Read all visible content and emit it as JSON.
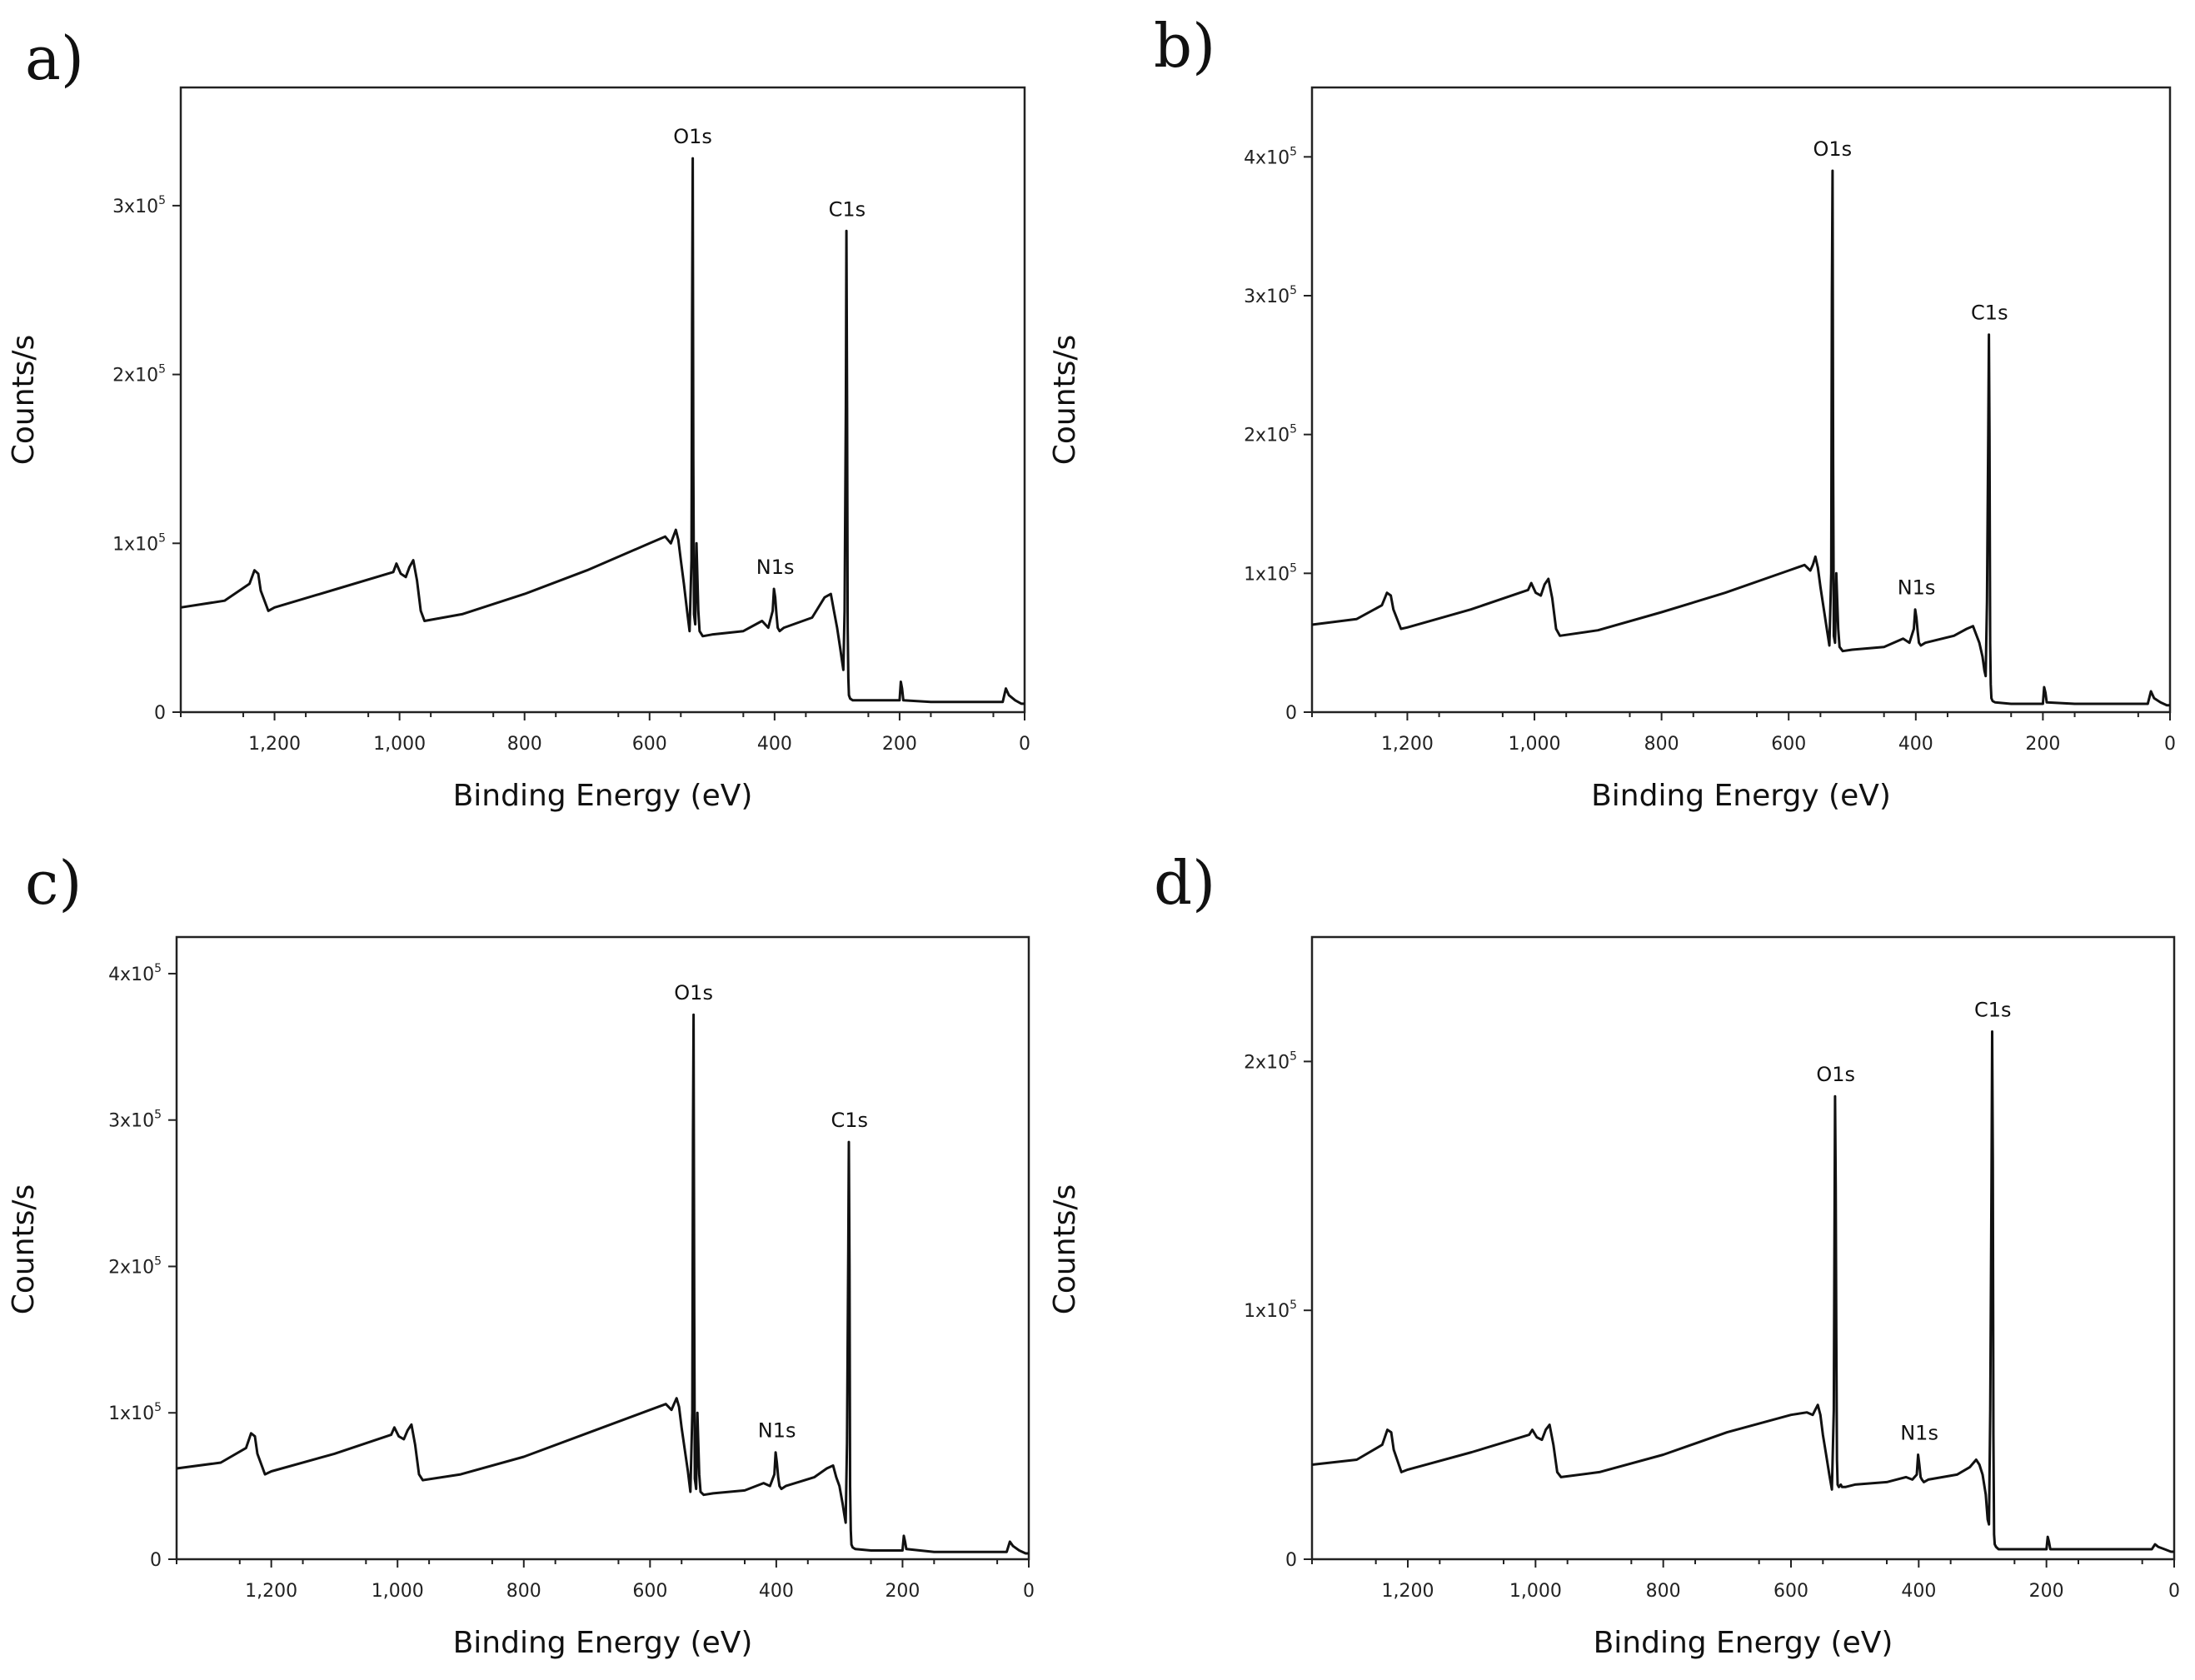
{
  "chart_data": [
    {
      "type": "line",
      "panel": "a)",
      "xlabel": "Binding Energy (eV)",
      "ylabel": "Counts/s",
      "xlim": [
        1350,
        0
      ],
      "ylim": [
        0,
        370000
      ],
      "xticks": [
        {
          "v": 1200,
          "t": "1,200"
        },
        {
          "v": 1000,
          "t": "1,000"
        },
        {
          "v": 800,
          "t": "800"
        },
        {
          "v": 600,
          "t": "600"
        },
        {
          "v": 400,
          "t": "400"
        },
        {
          "v": 200,
          "t": "200"
        },
        {
          "v": 0,
          "t": "0"
        }
      ],
      "yticks": [
        {
          "v": 0,
          "m": "0",
          "e": ""
        },
        {
          "v": 100000,
          "m": "1x10",
          "e": "5"
        },
        {
          "v": 200000,
          "m": "2x10",
          "e": "5"
        },
        {
          "v": 300000,
          "m": "3x10",
          "e": "5"
        }
      ],
      "peaks": [
        {
          "label": "O1s",
          "x": 531,
          "y": 328000
        },
        {
          "label": "C1s",
          "x": 284,
          "y": 285000
        },
        {
          "label": "N1s",
          "x": 399,
          "y": 73000
        }
      ],
      "series": [
        {
          "name": "spectrum",
          "x": [
            1350,
            1280,
            1240,
            1232,
            1226,
            1222,
            1210,
            1200,
            1100,
            1010,
            1005,
            998,
            990,
            984,
            978,
            972,
            966,
            960,
            900,
            800,
            700,
            600,
            575,
            566,
            562,
            558,
            554,
            550,
            545,
            540,
            536,
            533,
            532,
            531,
            530,
            529,
            527,
            525,
            522,
            520,
            515,
            500,
            450,
            420,
            410,
            403,
            401,
            399,
            397,
            395,
            392,
            385,
            340,
            320,
            310,
            305,
            300,
            295,
            292,
            290,
            288,
            286,
            285,
            284,
            283,
            282,
            281,
            279,
            275,
            250,
            200,
            198,
            196,
            194,
            150,
            100,
            35,
            30,
            25,
            15,
            5,
            0
          ],
          "y": [
            62000,
            66000,
            76000,
            84000,
            82000,
            72000,
            60000,
            62000,
            73000,
            83000,
            88000,
            82000,
            80000,
            86000,
            90000,
            78000,
            60000,
            54000,
            58000,
            70000,
            84000,
            100000,
            104000,
            100000,
            104000,
            108000,
            102000,
            90000,
            76000,
            60000,
            48000,
            90000,
            230000,
            328000,
            150000,
            58000,
            52000,
            100000,
            60000,
            48000,
            45000,
            46000,
            48000,
            54000,
            50000,
            60000,
            73000,
            68000,
            58000,
            50000,
            48000,
            50000,
            56000,
            68000,
            70000,
            60000,
            50000,
            38000,
            30000,
            25000,
            60000,
            180000,
            285000,
            180000,
            50000,
            20000,
            10000,
            8000,
            7000,
            7000,
            7000,
            18000,
            14000,
            7000,
            6000,
            6000,
            6000,
            14000,
            10000,
            7000,
            5000,
            5000
          ]
        }
      ]
    },
    {
      "type": "line",
      "panel": "b)",
      "xlabel": "Binding Energy (eV)",
      "ylabel": "Counts/s",
      "xlim": [
        1350,
        0
      ],
      "ylim": [
        0,
        450000
      ],
      "xticks": [
        {
          "v": 1200,
          "t": "1,200"
        },
        {
          "v": 1000,
          "t": "1,000"
        },
        {
          "v": 800,
          "t": "800"
        },
        {
          "v": 600,
          "t": "600"
        },
        {
          "v": 400,
          "t": "400"
        },
        {
          "v": 200,
          "t": "200"
        },
        {
          "v": 0,
          "t": "0"
        }
      ],
      "yticks": [
        {
          "v": 0,
          "m": "0",
          "e": ""
        },
        {
          "v": 100000,
          "m": "1x10",
          "e": "5"
        },
        {
          "v": 200000,
          "m": "2x10",
          "e": "5"
        },
        {
          "v": 300000,
          "m": "3x10",
          "e": "5"
        },
        {
          "v": 400000,
          "m": "4x10",
          "e": "5"
        }
      ],
      "peaks": [
        {
          "label": "O1s",
          "x": 531,
          "y": 390000
        },
        {
          "label": "C1s",
          "x": 284,
          "y": 272000
        },
        {
          "label": "N1s",
          "x": 399,
          "y": 74000
        }
      ],
      "series": [
        {
          "name": "spectrum",
          "x": [
            1350,
            1280,
            1240,
            1232,
            1226,
            1222,
            1210,
            1200,
            1100,
            1010,
            1005,
            998,
            990,
            984,
            978,
            972,
            966,
            960,
            900,
            800,
            700,
            600,
            575,
            566,
            562,
            558,
            554,
            550,
            545,
            540,
            536,
            533,
            532,
            531,
            530,
            529,
            527,
            525,
            522,
            520,
            515,
            500,
            450,
            420,
            410,
            403,
            401,
            399,
            397,
            395,
            392,
            385,
            340,
            320,
            310,
            305,
            300,
            295,
            292,
            290,
            288,
            286,
            285,
            284,
            283,
            282,
            281,
            279,
            275,
            250,
            200,
            198,
            196,
            194,
            150,
            100,
            35,
            30,
            25,
            15,
            5,
            0
          ],
          "y": [
            63000,
            67000,
            77000,
            86000,
            84000,
            74000,
            60000,
            61000,
            74000,
            88000,
            93000,
            86000,
            84000,
            92000,
            96000,
            82000,
            60000,
            55000,
            59000,
            72000,
            86000,
            102000,
            106000,
            102000,
            106000,
            112000,
            104000,
            90000,
            75000,
            60000,
            48000,
            100000,
            300000,
            390000,
            180000,
            55000,
            50000,
            100000,
            60000,
            47000,
            44000,
            45000,
            47000,
            53000,
            50000,
            60000,
            74000,
            68000,
            58000,
            50000,
            48000,
            50000,
            55000,
            60000,
            62000,
            56000,
            50000,
            40000,
            30000,
            26000,
            80000,
            200000,
            272000,
            200000,
            50000,
            20000,
            10000,
            8000,
            7000,
            6000,
            6000,
            18000,
            14000,
            7000,
            6000,
            6000,
            6000,
            15000,
            10000,
            7000,
            5000,
            5000
          ]
        }
      ]
    },
    {
      "type": "line",
      "panel": "c)",
      "xlabel": "Binding Energy (eV)",
      "ylabel": "Counts/s",
      "xlim": [
        1350,
        0
      ],
      "ylim": [
        0,
        425000
      ],
      "xticks": [
        {
          "v": 1200,
          "t": "1,200"
        },
        {
          "v": 1000,
          "t": "1,000"
        },
        {
          "v": 800,
          "t": "800"
        },
        {
          "v": 600,
          "t": "600"
        },
        {
          "v": 400,
          "t": "400"
        },
        {
          "v": 200,
          "t": "200"
        },
        {
          "v": 0,
          "t": "0"
        }
      ],
      "yticks": [
        {
          "v": 0,
          "m": "0",
          "e": ""
        },
        {
          "v": 100000,
          "m": "1x10",
          "e": "5"
        },
        {
          "v": 200000,
          "m": "2x10",
          "e": "5"
        },
        {
          "v": 300000,
          "m": "3x10",
          "e": "5"
        },
        {
          "v": 400000,
          "m": "4x10",
          "e": "5"
        }
      ],
      "peaks": [
        {
          "label": "O1s",
          "x": 531,
          "y": 372000
        },
        {
          "label": "C1s",
          "x": 284,
          "y": 285000
        },
        {
          "label": "N1s",
          "x": 399,
          "y": 73000
        }
      ],
      "series": [
        {
          "name": "spectrum",
          "x": [
            1350,
            1280,
            1240,
            1232,
            1226,
            1222,
            1210,
            1200,
            1100,
            1010,
            1005,
            998,
            990,
            984,
            978,
            972,
            966,
            960,
            900,
            800,
            700,
            600,
            575,
            566,
            562,
            558,
            554,
            550,
            545,
            540,
            536,
            533,
            532,
            531,
            530,
            529,
            527,
            525,
            522,
            520,
            515,
            500,
            450,
            420,
            410,
            403,
            401,
            399,
            397,
            395,
            392,
            385,
            340,
            320,
            310,
            305,
            300,
            295,
            292,
            290,
            288,
            286,
            285,
            284,
            283,
            282,
            281,
            279,
            275,
            250,
            200,
            198,
            196,
            194,
            150,
            100,
            35,
            30,
            25,
            15,
            5,
            0
          ],
          "y": [
            62000,
            66000,
            76000,
            86000,
            84000,
            72000,
            58000,
            60000,
            72000,
            85000,
            90000,
            84000,
            82000,
            88000,
            92000,
            78000,
            58000,
            54000,
            58000,
            70000,
            86000,
            102000,
            106000,
            102000,
            106000,
            110000,
            104000,
            90000,
            75000,
            60000,
            46000,
            100000,
            290000,
            372000,
            170000,
            55000,
            48000,
            100000,
            58000,
            46000,
            44000,
            45000,
            47000,
            52000,
            50000,
            58000,
            73000,
            66000,
            56000,
            50000,
            48000,
            50000,
            56000,
            62000,
            64000,
            56000,
            50000,
            38000,
            30000,
            25000,
            80000,
            210000,
            285000,
            200000,
            50000,
            20000,
            10000,
            8000,
            7000,
            6000,
            6000,
            16000,
            12000,
            7000,
            5000,
            5000,
            5000,
            12000,
            9000,
            6000,
            4000,
            4000
          ]
        }
      ]
    },
    {
      "type": "line",
      "panel": "d)",
      "xlabel": "Binding Energy (eV)",
      "ylabel": "Counts/s",
      "xlim": [
        1350,
        0
      ],
      "ylim": [
        0,
        250000
      ],
      "xticks": [
        {
          "v": 1200,
          "t": "1,200"
        },
        {
          "v": 1000,
          "t": "1,000"
        },
        {
          "v": 800,
          "t": "800"
        },
        {
          "v": 600,
          "t": "600"
        },
        {
          "v": 400,
          "t": "400"
        },
        {
          "v": 200,
          "t": "200"
        },
        {
          "v": 0,
          "t": "0"
        }
      ],
      "yticks": [
        {
          "v": 0,
          "m": "0",
          "e": ""
        },
        {
          "v": 100000,
          "m": "1x10",
          "e": "5"
        },
        {
          "v": 200000,
          "m": "2x10",
          "e": "5"
        }
      ],
      "peaks": [
        {
          "label": "O1s",
          "x": 530,
          "y": 186000
        },
        {
          "label": "C1s",
          "x": 284,
          "y": 212000
        },
        {
          "label": "N1s",
          "x": 399,
          "y": 42000
        }
      ],
      "series": [
        {
          "name": "spectrum",
          "x": [
            1350,
            1280,
            1240,
            1232,
            1226,
            1222,
            1210,
            1200,
            1100,
            1010,
            1005,
            998,
            990,
            984,
            978,
            972,
            966,
            960,
            900,
            800,
            700,
            600,
            575,
            566,
            562,
            558,
            554,
            550,
            545,
            540,
            536,
            533,
            532,
            531,
            530,
            529,
            528,
            527,
            525,
            522,
            520,
            515,
            500,
            450,
            420,
            410,
            403,
            401,
            399,
            397,
            395,
            392,
            385,
            340,
            320,
            310,
            305,
            300,
            295,
            292,
            290,
            288,
            286,
            285,
            284,
            283,
            282,
            281,
            279,
            275,
            250,
            200,
            198,
            196,
            194,
            150,
            100,
            35,
            30,
            25,
            15,
            5,
            0
          ],
          "y": [
            38000,
            40000,
            46000,
            52000,
            51000,
            44000,
            35000,
            36000,
            43000,
            50000,
            52000,
            49000,
            48000,
            52000,
            54000,
            46000,
            35000,
            33000,
            35000,
            42000,
            51000,
            58000,
            59000,
            58000,
            60000,
            62000,
            58000,
            50000,
            42000,
            34000,
            28000,
            60000,
            120000,
            186000,
            150000,
            90000,
            40000,
            30000,
            29000,
            30000,
            29000,
            29000,
            30000,
            31000,
            33000,
            32000,
            34000,
            42000,
            38000,
            33000,
            32000,
            31000,
            32000,
            34000,
            37000,
            40000,
            38000,
            34000,
            26000,
            16000,
            14000,
            60000,
            150000,
            212000,
            160000,
            50000,
            10000,
            6000,
            5000,
            4000,
            4000,
            4000,
            9000,
            7000,
            4000,
            4000,
            4000,
            4000,
            6000,
            5000,
            4000,
            3000,
            3000
          ]
        }
      ]
    }
  ]
}
